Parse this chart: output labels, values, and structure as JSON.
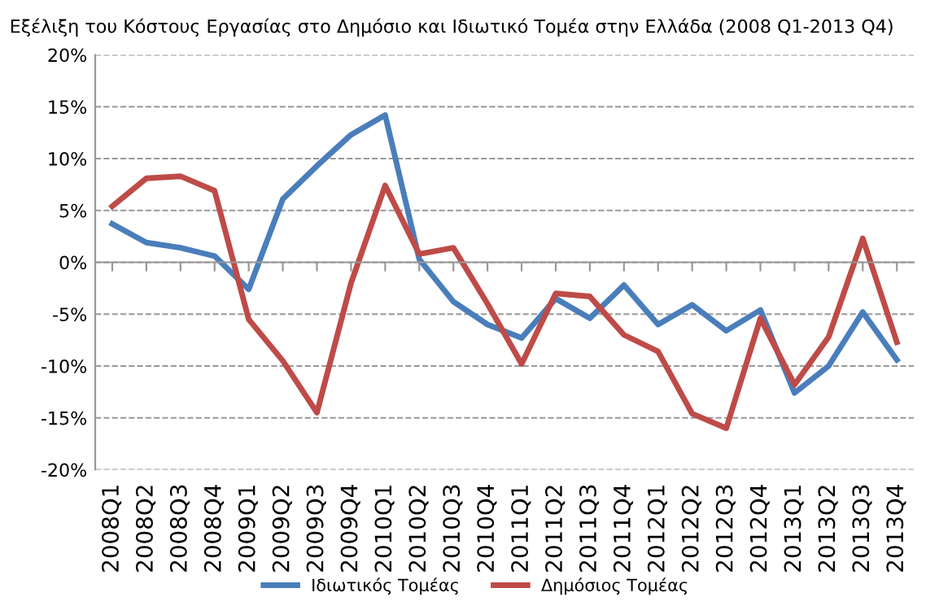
{
  "chart_data": {
    "type": "line",
    "title": "Εξέλιξη του Κόστους Εργασίας στο Δημόσιο και Ιδιωτικό Τομέα στην Ελλάδα (2008 Q1-2013 Q4)",
    "categories": [
      "2008Q1",
      "2008Q2",
      "2008Q3",
      "2008Q4",
      "2009Q1",
      "2009Q2",
      "2009Q3",
      "2009Q4",
      "2010Q1",
      "2010Q2",
      "2010Q3",
      "2010Q4",
      "2011Q1",
      "2011Q2",
      "2011Q3",
      "2011Q4",
      "2012Q1",
      "2012Q2",
      "2012Q3",
      "2012Q4",
      "2013Q1",
      "2013Q2",
      "2013Q3",
      "2013Q4"
    ],
    "series": [
      {
        "name": "Ιδιωτικός Τομέας",
        "color": "#4a7ebb",
        "values": [
          3.7,
          1.9,
          1.4,
          0.6,
          -2.6,
          6.1,
          9.3,
          12.3,
          14.2,
          0.3,
          -3.8,
          -6.0,
          -7.3,
          -3.5,
          -5.4,
          -2.2,
          -6.0,
          -4.1,
          -6.6,
          -4.6,
          -12.6,
          -10.0,
          -4.8,
          -9.4
        ]
      },
      {
        "name": "Δημόσιος Τομέας",
        "color": "#be4b48",
        "values": [
          5.4,
          8.1,
          8.3,
          6.9,
          -5.5,
          -9.5,
          -14.5,
          -2.0,
          7.4,
          0.8,
          1.4,
          -4.0,
          -9.8,
          -3.0,
          -3.3,
          -7.0,
          -8.6,
          -14.6,
          -16.0,
          -5.4,
          -11.8,
          -7.2,
          2.3,
          -7.7
        ]
      }
    ],
    "ylim": [
      -20,
      20
    ],
    "yticks": [
      {
        "value": -20,
        "label": "-20%"
      },
      {
        "value": -15,
        "label": "-15%"
      },
      {
        "value": -10,
        "label": "-10%"
      },
      {
        "value": -5,
        "label": "-5%"
      },
      {
        "value": 0,
        "label": "0%"
      },
      {
        "value": 5,
        "label": "5%"
      },
      {
        "value": 10,
        "label": "10%"
      },
      {
        "value": 15,
        "label": "15%"
      },
      {
        "value": 20,
        "label": "20%"
      }
    ],
    "grid": "y",
    "legend": "bottom",
    "marker": "none",
    "line_style": "solid"
  }
}
